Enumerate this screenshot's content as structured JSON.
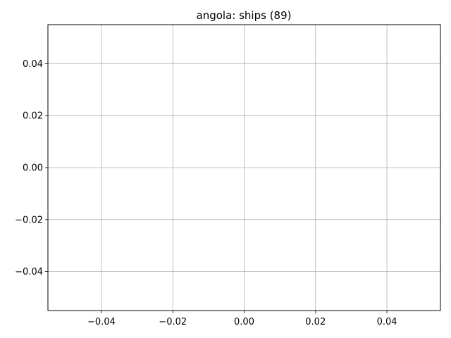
{
  "chart_data": {
    "type": "line",
    "title": "angola: ships (89)",
    "xlabel": "",
    "ylabel": "",
    "xlim": [
      -0.055,
      0.055
    ],
    "ylim": [
      -0.055,
      0.055
    ],
    "x_ticks": [
      -0.04,
      -0.02,
      0.0,
      0.02,
      0.04
    ],
    "x_tick_labels": [
      "−0.04",
      "−0.02",
      "0.00",
      "0.02",
      "0.04"
    ],
    "y_ticks": [
      -0.04,
      -0.02,
      0.0,
      0.02,
      0.04
    ],
    "y_tick_labels": [
      "−0.04",
      "−0.02",
      "0.00",
      "0.02",
      "0.04"
    ],
    "grid": true,
    "series": [
      {
        "x": [],
        "y": []
      }
    ],
    "colors": {
      "grid": "#b0b0b0",
      "axes": "#000000",
      "background": "#ffffff"
    }
  }
}
